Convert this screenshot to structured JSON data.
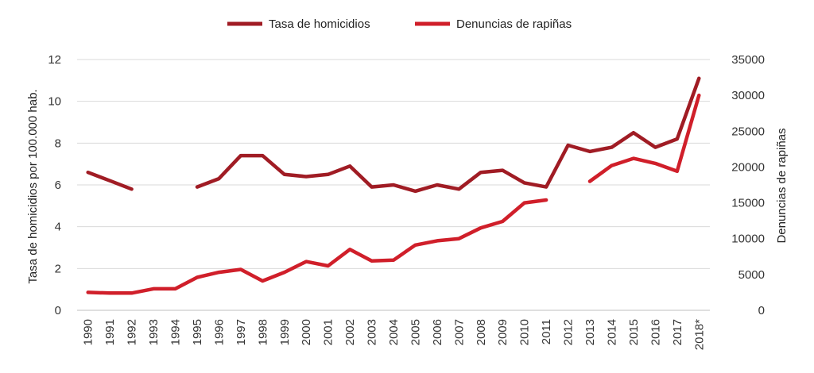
{
  "chart_data": {
    "type": "line",
    "categories": [
      "1990",
      "1991",
      "1992",
      "1993",
      "1994",
      "1995",
      "1996",
      "1997",
      "1998",
      "1999",
      "2000",
      "2001",
      "2002",
      "2003",
      "2004",
      "2005",
      "2006",
      "2007",
      "2008",
      "2009",
      "2010",
      "2011",
      "2012",
      "2013",
      "2014",
      "2015",
      "2016",
      "2017",
      "2018*"
    ],
    "series": [
      {
        "name": "Tasa de homicidios",
        "axis": "left",
        "color": "#A01C24",
        "values": [
          6.6,
          6.2,
          5.8,
          null,
          null,
          5.9,
          6.3,
          7.4,
          7.4,
          6.5,
          6.4,
          6.5,
          6.9,
          5.9,
          6.0,
          5.7,
          6.0,
          5.8,
          6.6,
          6.7,
          6.1,
          5.9,
          7.9,
          7.6,
          7.8,
          8.5,
          7.8,
          8.2,
          11.1
        ]
      },
      {
        "name": "Denuncias de rapiñas",
        "axis": "right",
        "color": "#D01F2A",
        "values": [
          2500,
          2400,
          2400,
          3000,
          3000,
          4600,
          5300,
          5700,
          4100,
          5300,
          6800,
          6200,
          8500,
          6900,
          7000,
          9100,
          9700,
          10000,
          11500,
          12400,
          15000,
          15400,
          null,
          18000,
          20200,
          21200,
          20500,
          19400,
          30000
        ]
      }
    ],
    "y_left": {
      "label": "Tasa de homicidios  por 100.000 hab.",
      "range": [
        0,
        12
      ],
      "ticks": [
        0,
        2,
        4,
        6,
        8,
        10,
        12
      ]
    },
    "y_right": {
      "label": "Denuncias de rapiñas",
      "range": [
        0,
        35000
      ],
      "ticks": [
        0,
        5000,
        10000,
        15000,
        20000,
        25000,
        30000,
        35000
      ]
    },
    "grid": true,
    "legend_position": "top-center"
  }
}
